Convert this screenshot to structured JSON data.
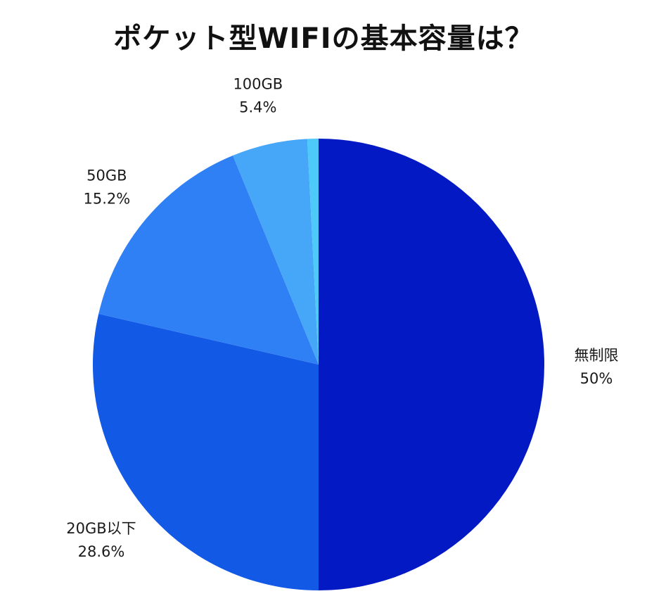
{
  "title": "ポケット型WIFIの基本容量は？",
  "chart_data": {
    "type": "pie",
    "title": "ポケット型WIFIの基本容量は？",
    "slices": [
      {
        "label": "無制限",
        "value_text": "50%",
        "value": 50.0,
        "color": "#0219c4"
      },
      {
        "label": "20GB以下",
        "value_text": "28.6%",
        "value": 28.6,
        "color": "#1259e6"
      },
      {
        "label": "50GB",
        "value_text": "15.2%",
        "value": 15.2,
        "color": "#2f80f5"
      },
      {
        "label": "100GB",
        "value_text": "5.4%",
        "value": 5.4,
        "color": "#46a6f7"
      },
      {
        "label": "",
        "value_text": "",
        "value": 0.8,
        "color": "#4dc9fa"
      }
    ],
    "start": "top",
    "direction": "clockwise",
    "legend": "none"
  }
}
